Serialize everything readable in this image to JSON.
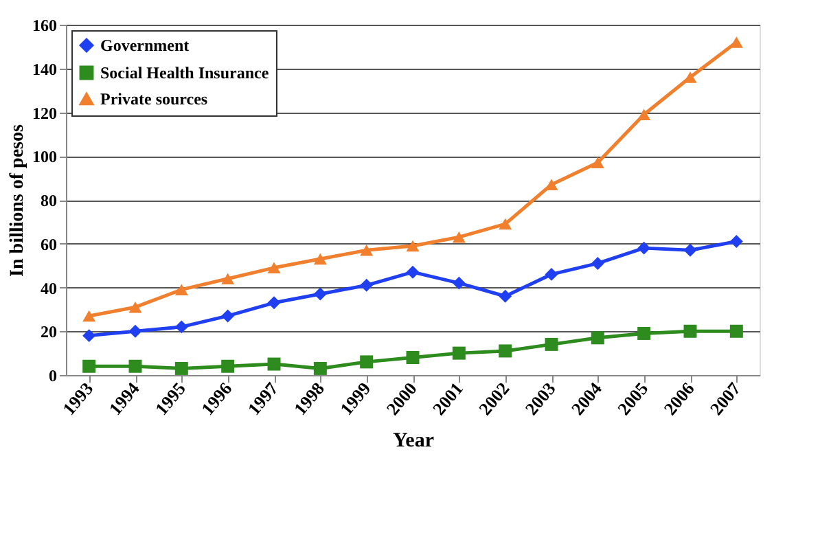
{
  "chart_data": {
    "type": "line",
    "xlabel": "Year",
    "ylabel": "In billions of pesos",
    "categories": [
      "1993",
      "1994",
      "1995",
      "1996",
      "1997",
      "1998",
      "1999",
      "2000",
      "2001",
      "2002",
      "2003",
      "2004",
      "2005",
      "2006",
      "2007"
    ],
    "series": [
      {
        "name": "Government",
        "color": "#1f3ff0",
        "marker": "diamond",
        "values": [
          18,
          20,
          22,
          27,
          33,
          37,
          41,
          47,
          42,
          36,
          46,
          51,
          58,
          57,
          61
        ]
      },
      {
        "name": "Social Health Insurance",
        "color": "#2e8b1e",
        "marker": "square",
        "values": [
          4,
          4,
          3,
          4,
          5,
          3,
          6,
          8,
          10,
          11,
          14,
          17,
          19,
          20,
          20
        ]
      },
      {
        "name": "Private sources",
        "color": "#f07f2e",
        "marker": "triangle",
        "values": [
          27,
          31,
          39,
          44,
          49,
          53,
          57,
          59,
          63,
          69,
          87,
          97,
          119,
          136,
          152
        ]
      }
    ],
    "ylim": [
      0,
      160
    ],
    "yticks": [
      0,
      20,
      40,
      60,
      80,
      100,
      120,
      140,
      160
    ],
    "grid": "y",
    "legend": "top left"
  }
}
